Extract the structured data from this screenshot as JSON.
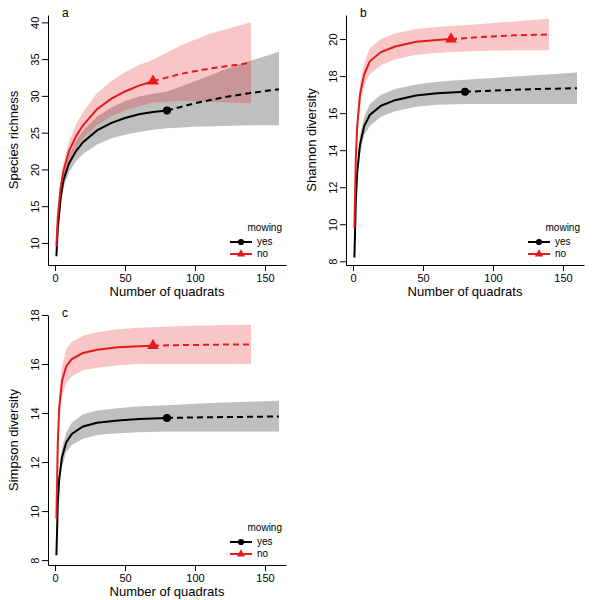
{
  "chart_data": [
    {
      "type": "line",
      "title": "a",
      "x_label": "Number of quadrats",
      "y_label": "Species richness",
      "xlim": [
        -5,
        165
      ],
      "ylim": [
        7,
        41
      ],
      "xticks": [
        0,
        50,
        100,
        150
      ],
      "yticks": [
        10,
        15,
        20,
        25,
        30,
        35,
        40
      ],
      "legend": "bottom-right",
      "legend_title": "mowing",
      "series": [
        {
          "name": "yes",
          "color": "#000000",
          "marker": "circle",
          "observed_x": 80,
          "x": [
            1,
            2,
            4,
            6,
            10,
            15,
            20,
            30,
            40,
            50,
            60,
            70,
            80,
            100,
            120,
            140,
            160
          ],
          "values": [
            8.2,
            12,
            16,
            18.5,
            20.8,
            22.5,
            23.7,
            25.3,
            26.3,
            27,
            27.5,
            27.8,
            28,
            29,
            29.8,
            30.4,
            30.9
          ],
          "lower": [
            7.9,
            11.5,
            15.2,
            17.5,
            19.6,
            21.1,
            22.1,
            23.4,
            24.2,
            24.7,
            25.1,
            25.4,
            25.6,
            25.8,
            25.9,
            26,
            26
          ],
          "upper": [
            8.5,
            12.5,
            16.8,
            19.5,
            22,
            23.9,
            25.3,
            27.2,
            28.4,
            29.3,
            29.9,
            30.3,
            30.6,
            32,
            33.5,
            34.8,
            36
          ]
        },
        {
          "name": "no",
          "color": "#e41a1c",
          "marker": "triangle",
          "observed_x": 70,
          "x": [
            1,
            2,
            4,
            6,
            10,
            15,
            20,
            30,
            40,
            50,
            60,
            70,
            90,
            110,
            140
          ],
          "values": [
            9.5,
            13.5,
            17.5,
            19.8,
            22.5,
            24.5,
            26,
            28.2,
            29.6,
            30.6,
            31.4,
            32,
            33,
            33.7,
            34.5
          ],
          "lower": [
            9.2,
            13,
            16.7,
            18.8,
            21.2,
            22.9,
            24.2,
            26,
            27.2,
            28,
            28.6,
            29.1,
            29.3,
            29.2,
            29
          ],
          "upper": [
            9.8,
            14,
            18.3,
            20.8,
            23.8,
            26.1,
            27.8,
            30.4,
            32,
            33.2,
            34.2,
            34.9,
            36.9,
            38.4,
            40
          ]
        }
      ]
    },
    {
      "type": "line",
      "title": "b",
      "x_label": "Number of quadrats",
      "y_label": "Shannon diversity",
      "xlim": [
        -5,
        165
      ],
      "ylim": [
        7.8,
        21.3
      ],
      "xticks": [
        0,
        50,
        100,
        150
      ],
      "yticks": [
        8,
        10,
        12,
        14,
        16,
        18,
        20
      ],
      "legend": "bottom-right",
      "legend_title": "mowing",
      "series": [
        {
          "name": "yes",
          "color": "#000000",
          "marker": "circle",
          "observed_x": 80,
          "x": [
            1,
            2,
            3,
            5,
            8,
            12,
            20,
            30,
            45,
            60,
            80,
            100,
            130,
            160
          ],
          "values": [
            8.2,
            11.2,
            12.8,
            14.3,
            15.3,
            15.9,
            16.4,
            16.7,
            16.95,
            17.08,
            17.15,
            17.22,
            17.3,
            17.35
          ],
          "lower": [
            8.0,
            10.9,
            12.4,
            13.8,
            14.8,
            15.3,
            15.8,
            16.1,
            16.35,
            16.45,
            16.5,
            16.5,
            16.5,
            16.5
          ],
          "upper": [
            8.4,
            11.5,
            13.2,
            14.8,
            15.8,
            16.5,
            17,
            17.3,
            17.55,
            17.7,
            17.8,
            17.9,
            18.05,
            18.2
          ]
        },
        {
          "name": "no",
          "color": "#e41a1c",
          "marker": "triangle",
          "observed_x": 70,
          "x": [
            1,
            2,
            3,
            5,
            8,
            12,
            20,
            30,
            45,
            60,
            70,
            90,
            115,
            140
          ],
          "values": [
            9.8,
            13.5,
            15.3,
            17,
            18.1,
            18.8,
            19.3,
            19.6,
            19.85,
            19.95,
            20,
            20.1,
            20.2,
            20.25
          ],
          "lower": [
            9.6,
            13.1,
            14.8,
            16.4,
            17.5,
            18.1,
            18.6,
            18.9,
            19.15,
            19.25,
            19.3,
            19.35,
            19.4,
            19.4
          ],
          "upper": [
            10,
            13.9,
            15.8,
            17.6,
            18.7,
            19.5,
            20,
            20.3,
            20.55,
            20.65,
            20.7,
            20.8,
            20.95,
            21.1
          ]
        }
      ]
    },
    {
      "type": "line",
      "title": "c",
      "x_label": "Number of quadrats",
      "y_label": "Simpson diversity",
      "xlim": [
        -5,
        165
      ],
      "ylim": [
        7.8,
        18
      ],
      "xticks": [
        0,
        50,
        100,
        150
      ],
      "yticks": [
        8,
        10,
        12,
        14,
        16,
        18
      ],
      "legend": "bottom-right",
      "legend_title": "mowing",
      "series": [
        {
          "name": "yes",
          "color": "#000000",
          "marker": "circle",
          "observed_x": 80,
          "x": [
            1,
            2,
            3,
            5,
            8,
            12,
            20,
            30,
            45,
            60,
            80,
            100,
            130,
            160
          ],
          "values": [
            8.2,
            10.3,
            11.3,
            12.2,
            12.8,
            13.15,
            13.45,
            13.6,
            13.7,
            13.76,
            13.8,
            13.82,
            13.84,
            13.86
          ],
          "lower": [
            8.0,
            10.0,
            11.0,
            11.8,
            12.4,
            12.7,
            12.95,
            13.1,
            13.18,
            13.22,
            13.25,
            13.25,
            13.25,
            13.25
          ],
          "upper": [
            8.4,
            10.6,
            11.6,
            12.6,
            13.2,
            13.6,
            13.95,
            14.1,
            14.2,
            14.28,
            14.32,
            14.38,
            14.45,
            14.5
          ]
        },
        {
          "name": "no",
          "color": "#e41a1c",
          "marker": "triangle",
          "observed_x": 70,
          "x": [
            1,
            2,
            3,
            5,
            8,
            12,
            20,
            30,
            45,
            60,
            70,
            90,
            115,
            140
          ],
          "values": [
            9.7,
            12.8,
            14.2,
            15.3,
            15.9,
            16.2,
            16.45,
            16.58,
            16.68,
            16.73,
            16.75,
            16.77,
            16.79,
            16.8
          ],
          "lower": [
            9.5,
            12.4,
            13.7,
            14.7,
            15.2,
            15.5,
            15.75,
            15.85,
            15.95,
            16,
            16,
            16,
            16,
            16
          ],
          "upper": [
            9.9,
            13.2,
            14.7,
            15.9,
            16.6,
            16.9,
            17.15,
            17.3,
            17.42,
            17.48,
            17.5,
            17.55,
            17.58,
            17.6
          ]
        }
      ]
    }
  ]
}
